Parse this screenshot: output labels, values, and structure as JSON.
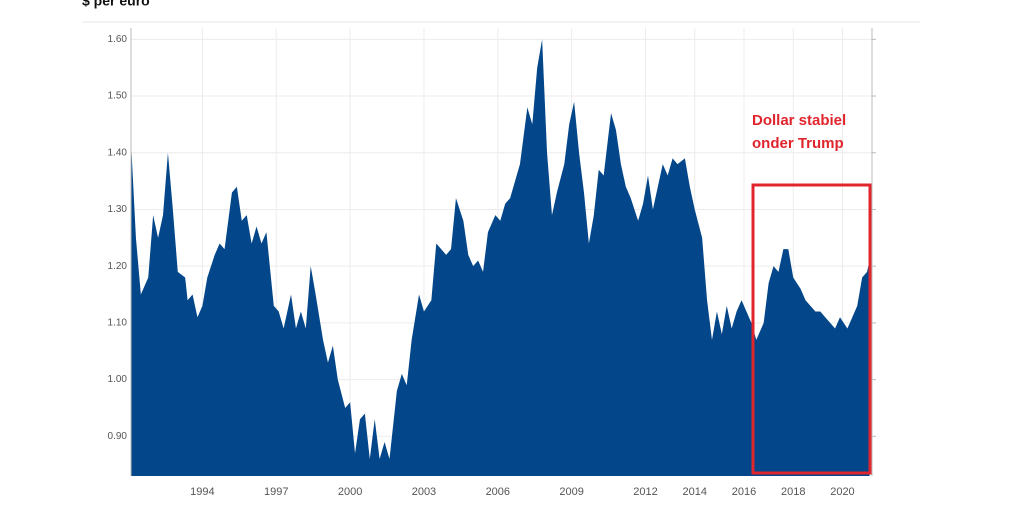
{
  "chart_data": {
    "type": "area",
    "title": "$ per euro",
    "color": "#03478a",
    "grid": true,
    "annotation": {
      "lines": [
        "Dollar stabiel",
        "onder Trump"
      ],
      "color": "#e0252d"
    },
    "xlim": [
      1991.1,
      2021.2
    ],
    "xticks": [
      1994,
      1997,
      2000,
      2003,
      2006,
      2009,
      2012,
      2014,
      2016,
      2018,
      2020
    ],
    "ylim": [
      0.83,
      1.62
    ],
    "yticks": [
      {
        "value": 0.9,
        "label": "0.90"
      },
      {
        "value": 1.0,
        "label": "1.00"
      },
      {
        "value": 1.1,
        "label": "1.10"
      },
      {
        "value": 1.2,
        "label": "1.20"
      },
      {
        "value": 1.3,
        "label": "1.30"
      },
      {
        "value": 1.4,
        "label": "1.40"
      },
      {
        "value": 1.5,
        "label": "1.50"
      },
      {
        "value": 1.6,
        "label": "1.60"
      }
    ],
    "x": [
      1991.1,
      1991.3,
      1991.5,
      1991.8,
      1992.0,
      1992.2,
      1992.4,
      1992.6,
      1992.8,
      1993.0,
      1993.3,
      1993.4,
      1993.6,
      1993.8,
      1994.0,
      1994.2,
      1994.5,
      1994.7,
      1994.9,
      1995.2,
      1995.4,
      1995.6,
      1995.8,
      1996.0,
      1996.2,
      1996.4,
      1996.6,
      1996.9,
      1997.1,
      1997.3,
      1997.6,
      1997.8,
      1998.0,
      1998.2,
      1998.4,
      1998.6,
      1998.9,
      1999.1,
      1999.3,
      1999.5,
      1999.8,
      2000.0,
      2000.2,
      2000.4,
      2000.6,
      2000.8,
      2001.0,
      2001.2,
      2001.4,
      2001.6,
      2001.9,
      2002.1,
      2002.3,
      2002.5,
      2002.8,
      2003.0,
      2003.3,
      2003.5,
      2003.7,
      2003.9,
      2004.1,
      2004.3,
      2004.6,
      2004.8,
      2005.0,
      2005.2,
      2005.4,
      2005.6,
      2005.9,
      2006.1,
      2006.3,
      2006.5,
      2006.7,
      2006.9,
      2007.2,
      2007.4,
      2007.6,
      2007.8,
      2008.0,
      2008.2,
      2008.4,
      2008.7,
      2008.9,
      2009.1,
      2009.3,
      2009.5,
      2009.7,
      2009.9,
      2010.1,
      2010.3,
      2010.6,
      2010.8,
      2011.0,
      2011.2,
      2011.4,
      2011.7,
      2011.9,
      2012.1,
      2012.3,
      2012.5,
      2012.7,
      2012.9,
      2013.1,
      2013.3,
      2013.6,
      2013.8,
      2014.0,
      2014.3,
      2014.5,
      2014.7,
      2014.9,
      2015.1,
      2015.3,
      2015.5,
      2015.7,
      2015.9,
      2016.1,
      2016.3,
      2016.5,
      2016.8,
      2017.0,
      2017.2,
      2017.4,
      2017.6,
      2017.8,
      2018.0,
      2018.3,
      2018.5,
      2018.7,
      2018.9,
      2019.1,
      2019.3,
      2019.5,
      2019.7,
      2019.9,
      2020.2,
      2020.4,
      2020.6,
      2020.8,
      2021.0,
      2021.1
    ],
    "values": [
      1.42,
      1.25,
      1.15,
      1.18,
      1.29,
      1.25,
      1.29,
      1.4,
      1.3,
      1.19,
      1.18,
      1.14,
      1.15,
      1.11,
      1.13,
      1.18,
      1.22,
      1.24,
      1.23,
      1.33,
      1.34,
      1.28,
      1.29,
      1.24,
      1.27,
      1.24,
      1.26,
      1.13,
      1.12,
      1.09,
      1.15,
      1.09,
      1.12,
      1.09,
      1.2,
      1.15,
      1.07,
      1.03,
      1.06,
      1.0,
      0.95,
      0.96,
      0.87,
      0.93,
      0.94,
      0.86,
      0.93,
      0.86,
      0.89,
      0.86,
      0.98,
      1.01,
      0.99,
      1.07,
      1.15,
      1.12,
      1.14,
      1.24,
      1.23,
      1.22,
      1.23,
      1.32,
      1.28,
      1.22,
      1.2,
      1.21,
      1.19,
      1.26,
      1.29,
      1.28,
      1.31,
      1.32,
      1.35,
      1.38,
      1.48,
      1.45,
      1.55,
      1.6,
      1.4,
      1.29,
      1.33,
      1.38,
      1.45,
      1.49,
      1.4,
      1.33,
      1.24,
      1.29,
      1.37,
      1.36,
      1.47,
      1.44,
      1.38,
      1.34,
      1.32,
      1.28,
      1.31,
      1.36,
      1.3,
      1.34,
      1.38,
      1.36,
      1.39,
      1.38,
      1.39,
      1.34,
      1.3,
      1.25,
      1.14,
      1.07,
      1.12,
      1.08,
      1.13,
      1.09,
      1.12,
      1.14,
      1.12,
      1.1,
      1.07,
      1.1,
      1.17,
      1.2,
      1.19,
      1.23,
      1.23,
      1.18,
      1.16,
      1.14,
      1.13,
      1.12,
      1.12,
      1.11,
      1.1,
      1.09,
      1.11,
      1.09,
      1.11,
      1.13,
      1.18,
      1.19,
      1.21
    ]
  }
}
